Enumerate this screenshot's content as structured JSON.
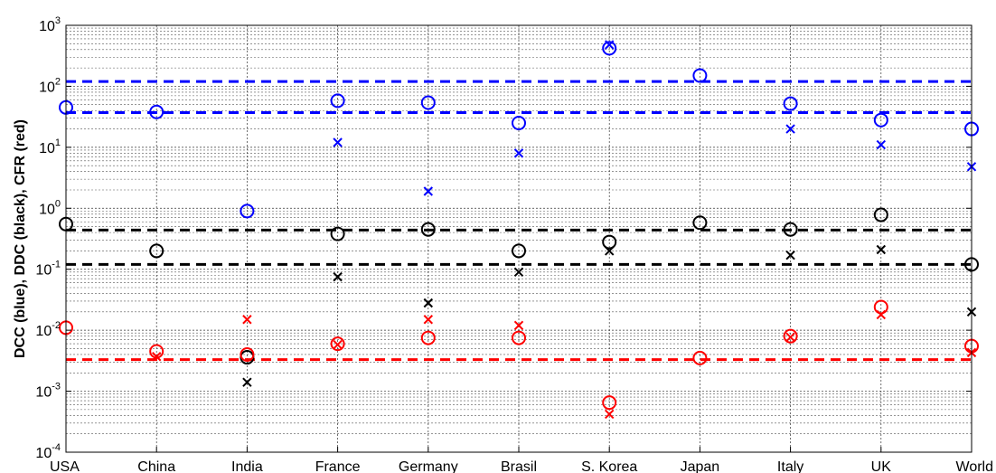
{
  "chart_data": {
    "type": "scatter",
    "ylabel": "DCC (blue), DDC (black), CFR (red)",
    "yscale": "log",
    "ylim": [
      0.0001,
      1000
    ],
    "y_ticks": [
      {
        "value": 0.0001,
        "base": "10",
        "exp": "-4"
      },
      {
        "value": 0.001,
        "base": "10",
        "exp": "-3"
      },
      {
        "value": 0.01,
        "base": "10",
        "exp": "-2"
      },
      {
        "value": 0.1,
        "base": "10",
        "exp": "-1"
      },
      {
        "value": 1,
        "base": "10",
        "exp": "0"
      },
      {
        "value": 10,
        "base": "10",
        "exp": "1"
      },
      {
        "value": 100,
        "base": "10",
        "exp": "2"
      },
      {
        "value": 1000,
        "base": "10",
        "exp": "3"
      }
    ],
    "categories": [
      "USA",
      "China",
      "India",
      "France",
      "Germany",
      "Brasil",
      "S. Korea",
      "Japan",
      "Italy",
      "UK",
      "World"
    ],
    "grid": true,
    "colors": {
      "blue": "#0000ff",
      "black": "#000000",
      "red": "#ff0000"
    },
    "series": [
      {
        "color": "blue",
        "marker": "circle",
        "values": [
          45,
          38,
          0.9,
          58,
          54,
          25,
          420,
          150,
          52,
          28,
          20
        ]
      },
      {
        "color": "blue",
        "marker": "x",
        "values": [
          null,
          null,
          null,
          12,
          1.9,
          8,
          480,
          null,
          20,
          11,
          4.8
        ]
      },
      {
        "color": "black",
        "marker": "circle",
        "values": [
          0.55,
          0.2,
          0.0036,
          0.38,
          0.45,
          0.2,
          0.28,
          0.58,
          0.45,
          0.78,
          0.12
        ]
      },
      {
        "color": "black",
        "marker": "x",
        "values": [
          null,
          null,
          0.0014,
          0.075,
          0.028,
          0.09,
          0.2,
          null,
          0.17,
          0.21,
          0.02
        ]
      },
      {
        "color": "red",
        "marker": "circle",
        "values": [
          0.011,
          0.0045,
          0.004,
          0.006,
          0.0075,
          0.0075,
          0.00065,
          0.0035,
          0.008,
          0.024,
          0.0055
        ]
      },
      {
        "color": "red",
        "marker": "x",
        "values": [
          null,
          0.0037,
          0.015,
          0.0058,
          0.015,
          0.012,
          0.00042,
          null,
          0.0077,
          0.018,
          0.0043
        ]
      }
    ],
    "reference_lines": [
      {
        "color": "blue",
        "style": "dashed",
        "y": 120
      },
      {
        "color": "blue",
        "style": "dashed",
        "y": 37
      },
      {
        "color": "black",
        "style": "dashed",
        "y": 0.44
      },
      {
        "color": "black",
        "style": "dashed",
        "y": 0.12
      },
      {
        "color": "red",
        "style": "dashed",
        "y": 0.0033
      }
    ]
  }
}
